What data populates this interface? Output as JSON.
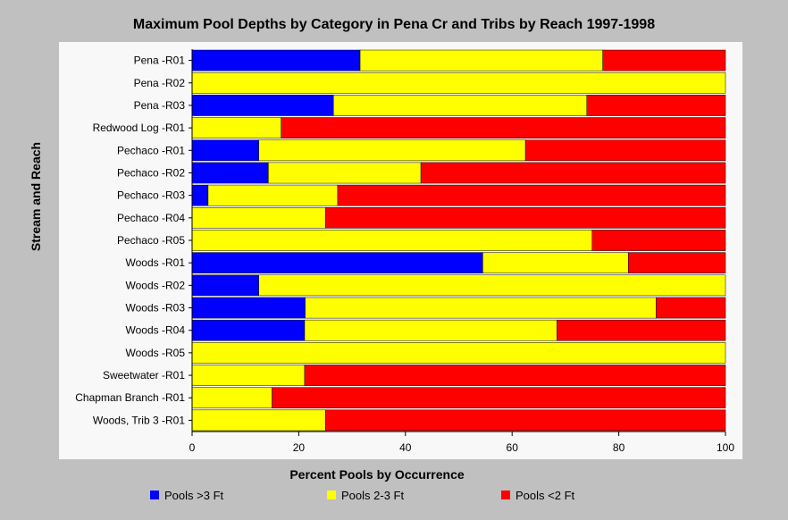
{
  "chart_data": {
    "type": "bar",
    "orientation": "horizontal",
    "stacked": true,
    "title": "Maximum Pool Depths by Category in Pena Cr and Tribs by Reach 1997-1998",
    "xlabel": "Percent Pools by Occurrence",
    "ylabel": "Stream and Reach",
    "xlim": [
      0,
      100
    ],
    "xticks": [
      "0",
      "20",
      "40",
      "60",
      "80",
      "100"
    ],
    "categories": [
      "Pena -R01",
      "Pena -R02",
      "Pena -R03",
      "Redwood Log -R01",
      "Pechaco -R01",
      "Pechaco -R02",
      "Pechaco -R03",
      "Pechaco -R04",
      "Pechaco -R05",
      "Woods -R01",
      "Woods -R02",
      "Woods -R03",
      "Woods -R04",
      "Woods -R05",
      "Sweetwater -R01",
      "Chapman Branch -R01",
      "Woods, Trib 3 -R01"
    ],
    "series": [
      {
        "name": "Pools >3 Ft",
        "color": "#0000ff",
        "values": [
          31.5,
          0,
          26.5,
          0,
          12.5,
          14.3,
          3.0,
          0,
          0,
          54.5,
          12.5,
          21.2,
          21.1,
          0,
          0,
          0,
          0
        ]
      },
      {
        "name": "Pools 2-3 Ft",
        "color": "#ffff00",
        "values": [
          45.5,
          100,
          47.5,
          16.7,
          50.0,
          28.6,
          24.3,
          25.0,
          75.0,
          27.3,
          87.5,
          65.8,
          47.3,
          100,
          21.1,
          15.0,
          25.0
        ]
      },
      {
        "name": "Pools <2 Ft",
        "color": "#ff0000",
        "values": [
          23.0,
          0,
          26.0,
          83.3,
          37.5,
          57.1,
          72.7,
          75.0,
          25.0,
          18.2,
          0,
          13.0,
          31.6,
          0,
          78.9,
          85.0,
          75.0
        ]
      }
    ],
    "grid": false,
    "legend_position": "bottom"
  }
}
